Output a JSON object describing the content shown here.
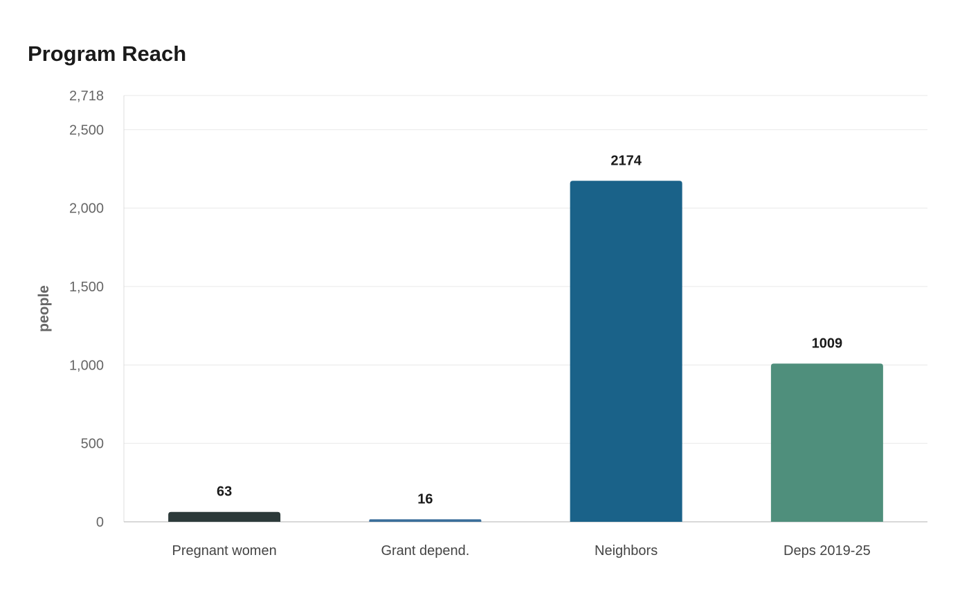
{
  "chart_data": {
    "type": "bar",
    "title": "Program Reach",
    "xlabel": "",
    "ylabel": "people",
    "categories": [
      "Pregnant women",
      "Grant depend.",
      "Neighbors",
      "Deps 2019-25"
    ],
    "values": [
      63,
      16,
      2174,
      1009
    ],
    "data_labels": [
      "63",
      "16",
      "2174",
      "1009"
    ],
    "colors": [
      "#2d3a3a",
      "#3a6e9a",
      "#1a6289",
      "#4f8f7c"
    ],
    "ylim": [
      0,
      2718
    ],
    "yticks": [
      0,
      500,
      1000,
      1500,
      2000,
      2500,
      2718
    ],
    "ytick_labels": [
      "0",
      "500",
      "1,000",
      "1,500",
      "2,000",
      "2,500",
      "2,718"
    ],
    "grid": true,
    "legend": "none"
  }
}
